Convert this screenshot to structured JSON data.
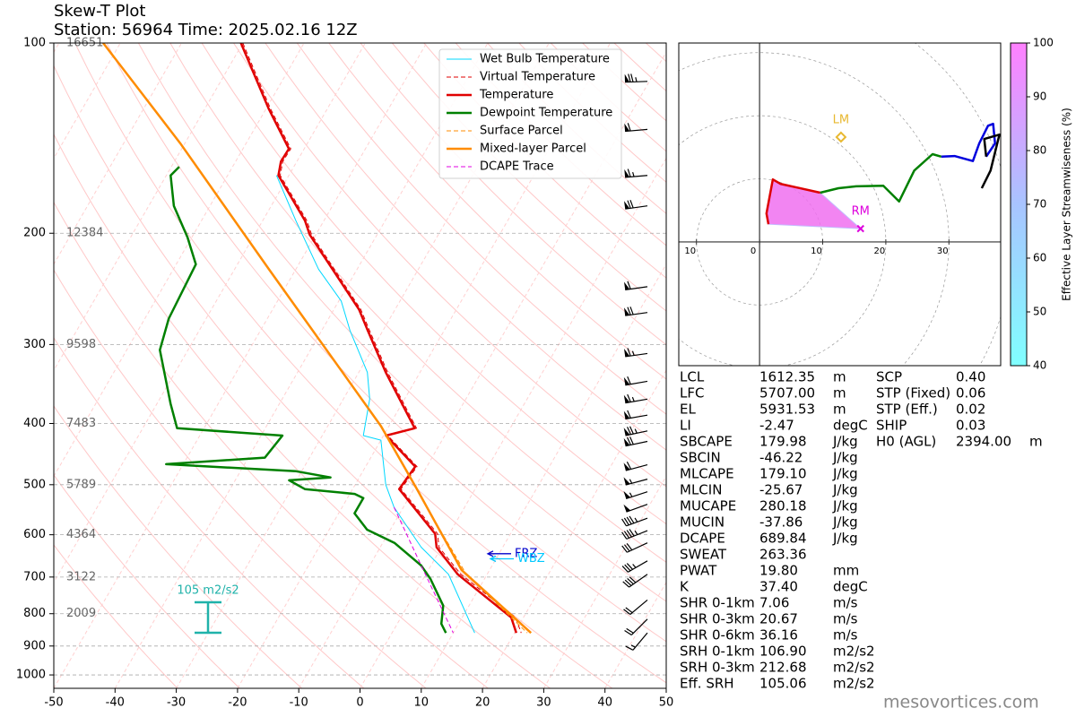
{
  "chart_data": [
    {
      "type": "skewt",
      "title": "Skew-T Plot",
      "subtitle": "Station: 56964 Time: 2025.02.16 12Z",
      "xlim": [
        -50,
        50
      ],
      "xticks": [
        -50,
        -40,
        -30,
        -20,
        -10,
        0,
        10,
        20,
        30,
        40,
        50
      ],
      "ylim": [
        1050,
        100
      ],
      "yticks": [
        100,
        200,
        300,
        400,
        500,
        600,
        700,
        800,
        900,
        1000
      ],
      "log_scale": true,
      "skew_degrees": 30,
      "grid": true,
      "heights": {
        "pressure": [
          100,
          200,
          300,
          400,
          500,
          600,
          700,
          800
        ],
        "values": [
          16651,
          12384,
          9598,
          7483,
          5789,
          4364,
          3122,
          2009
        ]
      },
      "series": [
        {
          "name": "Wet Bulb Temperature",
          "color": "#00d8ff",
          "style": "solid",
          "width": 1,
          "pressure": [
            162,
            191,
            228,
            256,
            285,
            332,
            366,
            418,
            425,
            500,
            543,
            628,
            693,
            858
          ],
          "values": [
            -62.0,
            -54.6,
            -46.3,
            -39.6,
            -35.4,
            -28.6,
            -25.7,
            -23.3,
            -20.0,
            -15.0,
            -11.5,
            -3.3,
            3.7,
            13.5
          ]
        },
        {
          "name": "Virtual Temperature",
          "color": "#e00000",
          "style": "dashed",
          "width": 1,
          "pressure": [
            100,
            127,
            147,
            154,
            162,
            191,
            201,
            264,
            285,
            332,
            407,
            418,
            468,
            508,
            598,
            628,
            693,
            811,
            858
          ],
          "values": [
            -80.0,
            -69.3,
            -62.2,
            -62.3,
            -61.4,
            -52.8,
            -50.7,
            -35.6,
            -32.2,
            -25.3,
            -15.3,
            -19.3,
            -11.6,
            -12.1,
            -1.9,
            -0.4,
            5.7,
            18.7,
            21.1
          ]
        },
        {
          "name": "Temperature",
          "color": "#e00000",
          "style": "solid",
          "width": 2.5,
          "pressure": [
            100,
            127,
            147,
            154,
            162,
            191,
            201,
            264,
            285,
            332,
            407,
            418,
            468,
            508,
            598,
            628,
            693,
            811,
            858
          ],
          "values": [
            -80.3,
            -69.6,
            -62.5,
            -62.6,
            -61.7,
            -53.1,
            -51.0,
            -35.9,
            -32.5,
            -25.6,
            -15.6,
            -19.6,
            -11.9,
            -12.4,
            -2.3,
            -0.8,
            5.2,
            18.0,
            20.3
          ]
        },
        {
          "name": "Dewpoint Temperature",
          "color": "#008000",
          "style": "solid",
          "width": 2.5,
          "pressure": [
            157,
            162,
            181,
            203,
            224,
            273,
            306,
            372,
            407,
            418,
            453,
            464,
            476,
            487,
            492,
            508,
            517,
            525,
            555,
            589,
            618,
            671,
            705,
            777,
            830,
            858
          ],
          "values": [
            -78.7,
            -79.3,
            -75.9,
            -70.7,
            -66.8,
            -66.1,
            -64.6,
            -57.8,
            -54.4,
            -36.5,
            -37.3,
            -52.8,
            -30.9,
            -24.7,
            -31.2,
            -27.8,
            -19.2,
            -17.4,
            -17.4,
            -13.8,
            -8.1,
            -1.6,
            1.2,
            5.8,
            7.2,
            8.8
          ]
        },
        {
          "name": "Surface Parcel",
          "color": "#ff8c00",
          "style": "dashed",
          "width": 1,
          "pressure": [
            525,
            693,
            858
          ],
          "values": [
            -7.9,
            6.6,
            22.1
          ]
        },
        {
          "name": "Mixed-layer Parcel",
          "color": "#ff8c00",
          "style": "solid",
          "width": 2.5,
          "pressure": [
            100,
            144,
            228,
            404,
            508,
            682,
            858
          ],
          "values": [
            -102.8,
            -80.8,
            -54.4,
            -21.3,
            -9.5,
            5.4,
            22.7
          ]
        },
        {
          "name": "DCAPE Trace",
          "color": "#e000e0",
          "style": "dashed",
          "width": 1,
          "pressure": [
            543,
            671,
            858
          ],
          "values": [
            -11.5,
            -1.6,
            10.0
          ]
        }
      ],
      "legend": "upper right",
      "winds": {
        "pressure": [
          115,
          137,
          162,
          181,
          243,
          267,
          310,
          343,
          366,
          388,
          411,
          427,
          465,
          490,
          513,
          537,
          565,
          591,
          618,
          660,
          693,
          761,
          816,
          858
        ],
        "speed": [
          75,
          60,
          65,
          70,
          60,
          70,
          65,
          60,
          65,
          60,
          75,
          70,
          60,
          55,
          55,
          50,
          45,
          45,
          30,
          35,
          40,
          20,
          20,
          15
        ],
        "direction": [
          268,
          265,
          265,
          262,
          262,
          262,
          262,
          260,
          260,
          260,
          258,
          258,
          255,
          255,
          252,
          250,
          250,
          248,
          245,
          240,
          235,
          230,
          225,
          220
        ]
      },
      "levels": [
        {
          "name": "FRZ",
          "pressure": 643,
          "color": "#0000cc"
        },
        {
          "name": "WBZ",
          "pressure": 655,
          "color": "#00c8ff"
        }
      ],
      "srh_marker": {
        "label": "105 m2/s2",
        "color": "#20b2aa"
      }
    },
    {
      "type": "hodograph",
      "xlim": [
        -12.8,
        38.2
      ],
      "ylim": [
        -19.6,
        31.5
      ],
      "xticks": [
        {
          "value": -10,
          "label": "10"
        },
        0,
        10,
        20,
        30
      ],
      "rings": [
        10,
        20,
        30,
        40,
        50
      ],
      "series": [
        {
          "color": "#dd0000",
          "u": [
            1.4,
            1.1,
            2.1,
            3.3,
            9.6
          ],
          "v": [
            2.8,
            4.5,
            9.9,
            9.2,
            7.8
          ]
        },
        {
          "color": "#008000",
          "u": [
            9.6,
            12.5,
            15.3,
            19.6,
            22.1,
            24.5,
            27.4,
            28.8
          ],
          "v": [
            7.8,
            8.5,
            8.8,
            8.9,
            6.4,
            11.3,
            13.9,
            13.5
          ]
        },
        {
          "color": "#0000dd",
          "u": [
            28.8,
            30.9,
            33.8,
            34.8,
            36.2,
            37.0,
            37.3,
            35.9
          ],
          "v": [
            13.5,
            13.6,
            12.8,
            15.6,
            18.4,
            18.7,
            15.6,
            13.5
          ]
        },
        {
          "color": "#000000",
          "u": [
            35.9,
            35.6,
            38.0,
            36.6,
            35.2
          ],
          "v": [
            13.5,
            16.3,
            17.0,
            11.3,
            8.5
          ]
        }
      ],
      "storm_motion": [
        {
          "name": "RM",
          "u": 16.0,
          "v": 2.1,
          "color": "#dd00dd",
          "marker": "x"
        },
        {
          "name": "LM",
          "u": 12.9,
          "v": 16.6,
          "color": "#e8b830",
          "marker": "diamond"
        }
      ],
      "colorbar": {
        "label": "Effective Layer Streamwiseness (%)",
        "lim": [
          40,
          100
        ],
        "ticks": [
          40,
          50,
          60,
          70,
          80,
          90,
          100
        ],
        "colors": [
          "#80ffff",
          "#a8c4ff",
          "#ff80ff"
        ]
      }
    }
  ],
  "parameters": {
    "left": [
      {
        "label": "LCL",
        "value": "1612.35",
        "unit": "m"
      },
      {
        "label": "LFC",
        "value": "5707.00",
        "unit": "m"
      },
      {
        "label": "EL",
        "value": "5931.53",
        "unit": "m"
      },
      {
        "label": "LI",
        "value": "-2.47",
        "unit": "degC"
      },
      {
        "label": "SBCAPE",
        "value": "179.98",
        "unit": "J/kg"
      },
      {
        "label": "SBCIN",
        "value": "-46.22",
        "unit": "J/kg"
      },
      {
        "label": "MLCAPE",
        "value": "179.10",
        "unit": "J/kg"
      },
      {
        "label": "MLCIN",
        "value": "-25.67",
        "unit": "J/kg"
      },
      {
        "label": "MUCAPE",
        "value": "280.18",
        "unit": "J/kg"
      },
      {
        "label": "MUCIN",
        "value": "-37.86",
        "unit": "J/kg"
      },
      {
        "label": "DCAPE",
        "value": "689.84",
        "unit": "J/kg"
      },
      {
        "label": "SWEAT",
        "value": "263.36"
      },
      {
        "label": "PWAT",
        "value": "19.80",
        "unit": "mm"
      },
      {
        "label": "K",
        "value": "37.40",
        "unit": "degC"
      },
      {
        "label": "SHR 0-1km",
        "value": "7.06",
        "unit": "m/s"
      },
      {
        "label": "SHR 0-3km",
        "value": "20.67",
        "unit": "m/s"
      },
      {
        "label": "SHR 0-6km",
        "value": "36.16",
        "unit": "m/s"
      },
      {
        "label": "SRH 0-1km",
        "value": "106.90",
        "unit": "m2/s2"
      },
      {
        "label": "SRH 0-3km",
        "value": "212.68",
        "unit": "m2/s2"
      },
      {
        "label": "Eff. SRH",
        "value": "105.06",
        "unit": "m2/s2"
      }
    ],
    "right": [
      {
        "label": "SCP",
        "value": "0.40"
      },
      {
        "label": "STP (Fixed)",
        "value": "0.06"
      },
      {
        "label": "STP (Eff.)",
        "value": "0.02"
      },
      {
        "label": "SHIP",
        "value": "0.03"
      },
      {
        "label": "H0 (AGL)",
        "value": "2394.00",
        "unit": "m"
      }
    ]
  },
  "footer": "mesovortices.com"
}
